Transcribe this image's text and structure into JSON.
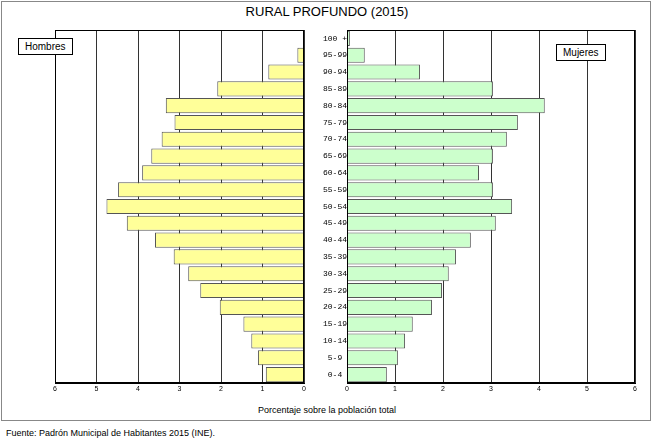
{
  "chart_data": {
    "type": "bar",
    "orientation": "horizontal",
    "title": "RURAL PROFUNDO (2015)",
    "x_label": "Porcentaje sobre la población total",
    "source": "Fuente: Padrón Municipal de Habitantes 2015 (INE).",
    "categories": [
      "0-4",
      "5-9",
      "10-14",
      "15-19",
      "20-24",
      "25-29",
      "30-34",
      "35-39",
      "40-44",
      "45-49",
      "50-54",
      "55-59",
      "60-64",
      "65-69",
      "70-74",
      "75-79",
      "80-84",
      "85-89",
      "90-94",
      "95-99",
      "100 +"
    ],
    "series": [
      {
        "name": "Hombres",
        "color": "#ffff99",
        "values": [
          0.92,
          1.11,
          1.27,
          1.46,
          2.03,
          2.5,
          2.79,
          3.14,
          3.59,
          4.27,
          4.76,
          4.48,
          3.9,
          3.68,
          3.43,
          3.12,
          3.33,
          2.09,
          0.86,
          0.16,
          0.02
        ]
      },
      {
        "name": "Mujeres",
        "color": "#ccffcc",
        "values": [
          0.83,
          1.06,
          1.21,
          1.37,
          1.77,
          1.98,
          2.12,
          2.27,
          2.58,
          3.1,
          3.44,
          3.04,
          2.75,
          3.04,
          3.33,
          3.56,
          4.12,
          3.04,
          1.52,
          0.37,
          0.06
        ]
      }
    ],
    "xlim": [
      0,
      6
    ],
    "xticks": [
      0,
      1,
      2,
      3,
      4,
      5,
      6
    ],
    "grid": true
  }
}
